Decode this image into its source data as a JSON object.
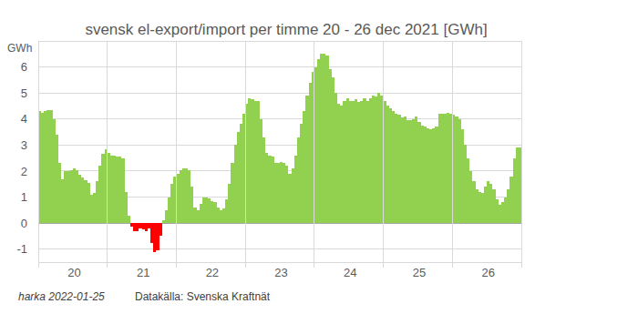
{
  "chart_data": {
    "type": "bar",
    "title": "svensk el-export/import per timme 20 - 26 dec 2021 [GWh]",
    "y_label": "GWh",
    "annotations": [
      "harka 2022-01-25",
      "Datakälla: Svenska Kraftnät"
    ],
    "categories": [
      null,
      null,
      null,
      null,
      null,
      null,
      null,
      null,
      null,
      null,
      null,
      null,
      "20",
      null,
      null,
      null,
      null,
      null,
      null,
      null,
      null,
      null,
      null,
      null,
      null,
      null,
      null,
      null,
      null,
      null,
      null,
      null,
      null,
      null,
      null,
      null,
      "21",
      null,
      null,
      null,
      null,
      null,
      null,
      null,
      null,
      null,
      null,
      null,
      null,
      null,
      null,
      null,
      null,
      null,
      null,
      null,
      null,
      null,
      null,
      null,
      "22",
      null,
      null,
      null,
      null,
      null,
      null,
      null,
      null,
      null,
      null,
      null,
      null,
      null,
      null,
      null,
      null,
      null,
      null,
      null,
      null,
      null,
      null,
      null,
      "23",
      null,
      null,
      null,
      null,
      null,
      null,
      null,
      null,
      null,
      null,
      null,
      null,
      null,
      null,
      null,
      null,
      null,
      null,
      null,
      null,
      null,
      null,
      null,
      "24",
      null,
      null,
      null,
      null,
      null,
      null,
      null,
      null,
      null,
      null,
      null,
      null,
      null,
      null,
      null,
      null,
      null,
      null,
      null,
      null,
      null,
      null,
      null,
      "25",
      null,
      null,
      null,
      null,
      null,
      null,
      null,
      null,
      null,
      null,
      null,
      null,
      null,
      null,
      null,
      null,
      null,
      null,
      null,
      null,
      null,
      null,
      null,
      "26",
      null,
      null,
      null,
      null,
      null,
      null,
      null,
      null,
      null,
      null,
      null
    ],
    "values": [
      4.3,
      4.25,
      4.3,
      4.35,
      4.35,
      4.0,
      3.4,
      2.3,
      1.7,
      2.0,
      2.0,
      2.05,
      2.1,
      2.05,
      1.85,
      1.75,
      1.65,
      1.55,
      1.1,
      1.15,
      1.6,
      2.2,
      2.65,
      2.85,
      2.7,
      2.6,
      2.6,
      2.55,
      2.55,
      2.5,
      1.2,
      0.3,
      -0.15,
      -0.3,
      -0.3,
      -0.2,
      -0.25,
      -0.3,
      -0.2,
      -0.75,
      -1.1,
      -1.05,
      -0.5,
      0.1,
      0.5,
      1.0,
      1.5,
      1.8,
      1.9,
      2.05,
      2.1,
      2.1,
      2.05,
      1.4,
      0.6,
      0.5,
      0.75,
      1.0,
      1.0,
      0.95,
      0.85,
      0.8,
      0.6,
      0.5,
      0.55,
      0.9,
      1.5,
      2.3,
      3.0,
      3.5,
      3.8,
      4.2,
      4.6,
      4.8,
      4.75,
      4.7,
      4.7,
      4.0,
      3.3,
      2.7,
      2.6,
      2.55,
      2.3,
      2.3,
      2.35,
      2.3,
      2.2,
      1.9,
      2.1,
      2.6,
      3.3,
      3.8,
      4.3,
      4.9,
      5.4,
      5.8,
      6.0,
      6.3,
      6.5,
      6.5,
      6.45,
      5.9,
      5.6,
      5.0,
      4.6,
      4.5,
      4.7,
      4.8,
      4.7,
      4.7,
      4.75,
      4.65,
      4.7,
      4.8,
      4.7,
      4.8,
      4.9,
      4.85,
      5.0,
      4.9,
      4.7,
      4.5,
      4.4,
      4.3,
      4.2,
      4.15,
      4.05,
      4.1,
      3.95,
      3.95,
      4.0,
      4.1,
      3.9,
      3.75,
      3.7,
      3.65,
      3.6,
      3.65,
      3.7,
      4.2,
      4.2,
      4.2,
      4.25,
      4.2,
      4.15,
      4.1,
      4.0,
      3.6,
      3.0,
      2.5,
      2.0,
      1.6,
      1.3,
      1.2,
      1.15,
      1.4,
      1.6,
      1.5,
      1.3,
      0.9,
      0.7,
      0.8,
      1.0,
      1.3,
      1.8,
      2.5,
      2.9,
      2.9
    ],
    "colors": [
      "#92d050",
      "#92d050",
      "#92d050",
      "#92d050",
      "#92d050",
      "#92d050",
      "#92d050",
      "#92d050",
      "#92d050",
      "#92d050",
      "#92d050",
      "#92d050",
      "#92d050",
      "#92d050",
      "#92d050",
      "#92d050",
      "#92d050",
      "#92d050",
      "#92d050",
      "#92d050",
      "#92d050",
      "#92d050",
      "#92d050",
      "#92d050",
      "#92d050",
      "#92d050",
      "#92d050",
      "#92d050",
      "#92d050",
      "#92d050",
      "#92d050",
      "#92d050",
      "#ff0000",
      "#ff0000",
      "#ff0000",
      "#ff0000",
      "#ff0000",
      "#ff0000",
      "#ff0000",
      "#ff0000",
      "#ff0000",
      "#ff0000",
      "#ff0000",
      "#92d050",
      "#92d050",
      "#92d050",
      "#92d050",
      "#92d050",
      "#92d050",
      "#92d050",
      "#92d050",
      "#92d050",
      "#92d050",
      "#92d050",
      "#92d050",
      "#92d050",
      "#92d050",
      "#92d050",
      "#92d050",
      "#92d050",
      "#92d050",
      "#92d050",
      "#92d050",
      "#92d050",
      "#92d050",
      "#92d050",
      "#92d050",
      "#92d050",
      "#92d050",
      "#92d050",
      "#92d050",
      "#92d050",
      "#92d050",
      "#92d050",
      "#92d050",
      "#92d050",
      "#92d050",
      "#92d050",
      "#92d050",
      "#92d050",
      "#92d050",
      "#92d050",
      "#92d050",
      "#92d050",
      "#92d050",
      "#92d050",
      "#92d050",
      "#92d050",
      "#92d050",
      "#92d050",
      "#92d050",
      "#92d050",
      "#92d050",
      "#92d050",
      "#92d050",
      "#92d050",
      "#92d050",
      "#92d050",
      "#92d050",
      "#92d050",
      "#92d050",
      "#92d050",
      "#92d050",
      "#92d050",
      "#92d050",
      "#92d050",
      "#92d050",
      "#92d050",
      "#92d050",
      "#92d050",
      "#92d050",
      "#92d050",
      "#92d050",
      "#92d050",
      "#92d050",
      "#92d050",
      "#92d050",
      "#92d050",
      "#92d050",
      "#92d050",
      "#92d050",
      "#92d050",
      "#92d050",
      "#92d050",
      "#92d050",
      "#92d050",
      "#92d050",
      "#92d050",
      "#92d050",
      "#92d050",
      "#92d050",
      "#92d050",
      "#92d050",
      "#92d050",
      "#92d050",
      "#92d050",
      "#92d050",
      "#92d050",
      "#92d050",
      "#92d050",
      "#92d050",
      "#92d050",
      "#92d050",
      "#92d050",
      "#92d050",
      "#92d050",
      "#92d050",
      "#92d050",
      "#92d050",
      "#92d050",
      "#92d050",
      "#92d050",
      "#92d050",
      "#92d050",
      "#92d050",
      "#92d050",
      "#92d050",
      "#92d050",
      "#92d050",
      "#92d050",
      "#92d050",
      "#92d050",
      "#92d050",
      "#92d050",
      "#92d050",
      "#92d050",
      "#92d050",
      "#92d050"
    ],
    "ylim": [
      -1.5,
      7
    ],
    "yticks": [
      -1,
      0,
      1,
      2,
      3,
      4,
      5,
      6
    ],
    "grid": true
  }
}
